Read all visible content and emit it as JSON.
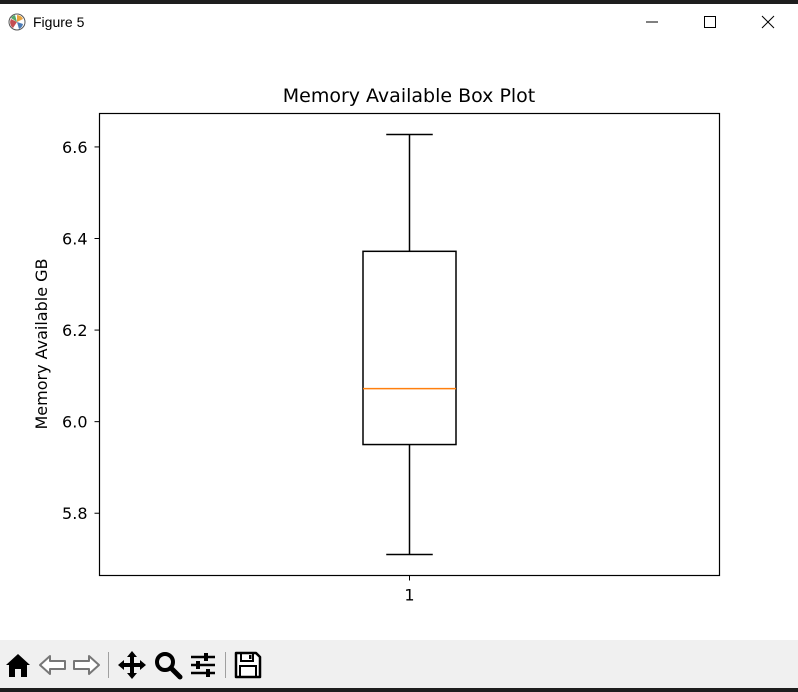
{
  "window": {
    "title": "Figure 5"
  },
  "toolbar": {
    "buttons": [
      {
        "icon": "home-icon"
      },
      {
        "icon": "back-arrow-icon"
      },
      {
        "icon": "forward-arrow-icon"
      },
      {
        "icon": "pan-icon"
      },
      {
        "icon": "zoom-icon"
      },
      {
        "icon": "configure-subplots-icon"
      },
      {
        "icon": "save-icon"
      }
    ]
  },
  "chart_data": {
    "type": "box",
    "title": "Memory Available Box Plot",
    "xlabel": "",
    "ylabel": "Memory Available GB",
    "categories": [
      "1"
    ],
    "boxes": [
      {
        "whisker_low": 5.71,
        "q1": 5.95,
        "median": 6.072,
        "q3": 6.372,
        "whisker_high": 6.627
      }
    ],
    "yticks": [
      5.8,
      6.0,
      6.2,
      6.4,
      6.6
    ],
    "ytick_labels": [
      "5.8",
      "6.0",
      "6.2",
      "6.4",
      "6.6"
    ],
    "ylim": [
      5.664,
      6.673
    ],
    "grid": false,
    "colors": {
      "box": "#000000",
      "median": "#ff7f0e"
    }
  }
}
